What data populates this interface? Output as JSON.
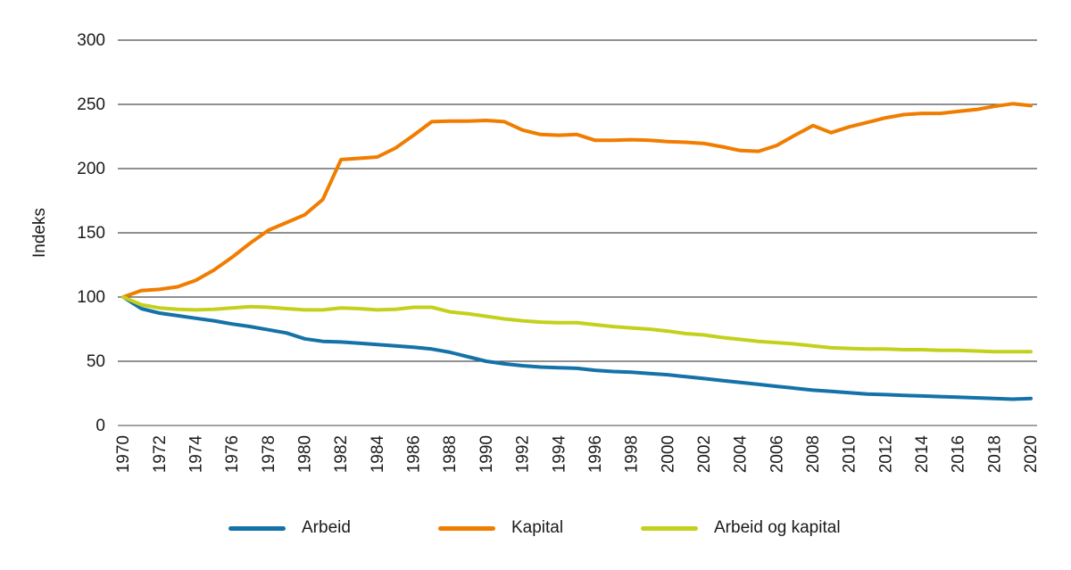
{
  "chart_data": {
    "type": "line",
    "title": "",
    "xlabel": "",
    "ylabel": "Indeks",
    "ylim": [
      0,
      300
    ],
    "ytick_step": 50,
    "xtick_step": 2,
    "grid": "horizontal",
    "legend_position": "bottom",
    "axis_color": "#4d4d4d",
    "baseline_color": "#a3a3a3",
    "text_color": "#1a1a1a",
    "x": [
      1970,
      1971,
      1972,
      1973,
      1974,
      1975,
      1976,
      1977,
      1978,
      1979,
      1980,
      1981,
      1982,
      1983,
      1984,
      1985,
      1986,
      1987,
      1988,
      1989,
      1990,
      1991,
      1992,
      1993,
      1994,
      1995,
      1996,
      1997,
      1998,
      1999,
      2000,
      2001,
      2002,
      2003,
      2004,
      2005,
      2006,
      2007,
      2008,
      2009,
      2010,
      2011,
      2012,
      2013,
      2014,
      2015,
      2016,
      2017,
      2018,
      2019,
      2020
    ],
    "series": [
      {
        "name": "Arbeid",
        "color": "#1572a8",
        "values": [
          100,
          91,
          87.5,
          85.5,
          83.5,
          81.5,
          79,
          77,
          74.5,
          72,
          67.5,
          65.5,
          65,
          64,
          63,
          62,
          61,
          59.5,
          57,
          53.5,
          50,
          48,
          46.5,
          45.5,
          45,
          44.5,
          43,
          42,
          41.5,
          40.5,
          39.5,
          38,
          36.5,
          35,
          33.5,
          32,
          30.5,
          29,
          27.5,
          26.5,
          25.5,
          24.5,
          24,
          23.5,
          23,
          22.5,
          22,
          21.5,
          21,
          20.5,
          21
        ]
      },
      {
        "name": "Kapital",
        "color": "#f07d00",
        "values": [
          100,
          105,
          106,
          108,
          113,
          121,
          131,
          142,
          152,
          158,
          164,
          176,
          207,
          208,
          209,
          216,
          226,
          236.5,
          237,
          237,
          237.5,
          236.5,
          230,
          226.5,
          226,
          226.5,
          222,
          222,
          222.5,
          222,
          221,
          220.5,
          219.5,
          217,
          214,
          213.5,
          218,
          226,
          233.5,
          228,
          232.5,
          236,
          239.5,
          242,
          243,
          243,
          244.5,
          246,
          248.5,
          250.5,
          249
        ]
      },
      {
        "name": "Arbeid og kapital",
        "color": "#c3d11c",
        "values": [
          100,
          94,
          91.5,
          90.5,
          90,
          90.5,
          91.5,
          92.5,
          92,
          91,
          90,
          90,
          91.5,
          91,
          90,
          90.5,
          92,
          92,
          88.5,
          87,
          85,
          83,
          81.5,
          80.5,
          80,
          80,
          78.5,
          77,
          76,
          75,
          73.5,
          71.5,
          70.5,
          68.5,
          67,
          65.5,
          64.5,
          63.5,
          62,
          60.5,
          60,
          59.5,
          59.5,
          59,
          59,
          58.5,
          58.5,
          58,
          57.5,
          57.5,
          57.5
        ]
      }
    ]
  }
}
